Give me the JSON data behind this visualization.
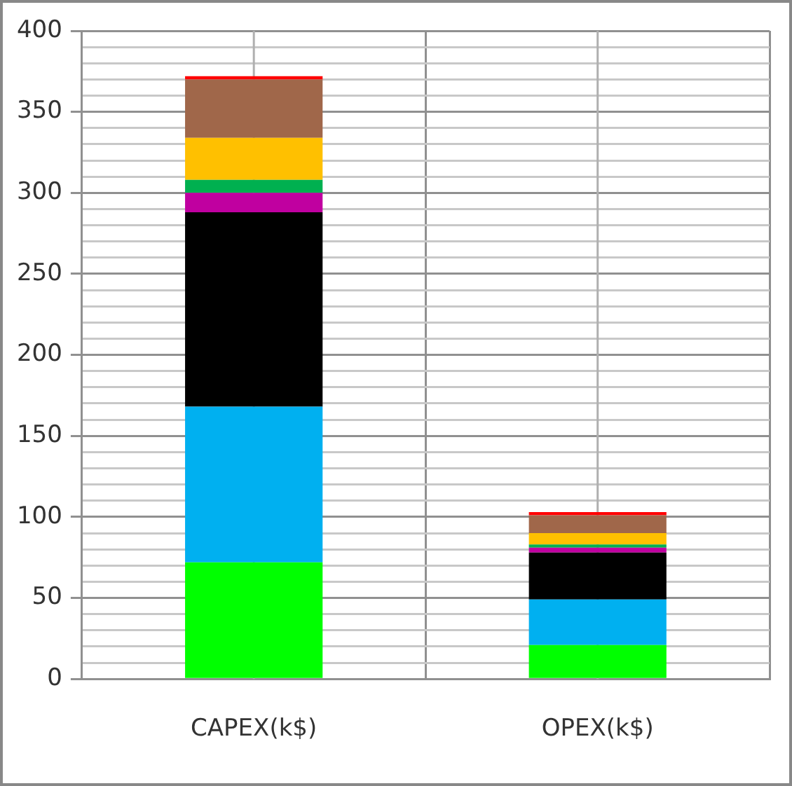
{
  "chart_data": {
    "type": "bar",
    "stacked": true,
    "categories": [
      "CAPEX(k$)",
      "OPEX(k$)"
    ],
    "series": [
      {
        "color": "#00ff00",
        "values": [
          72,
          21
        ]
      },
      {
        "color": "#00b0f0",
        "values": [
          96,
          28
        ]
      },
      {
        "color": "#000000",
        "values": [
          120,
          29
        ]
      },
      {
        "color": "#c000a0",
        "values": [
          12,
          3
        ]
      },
      {
        "color": "#00b050",
        "values": [
          8,
          2
        ]
      },
      {
        "color": "#ffc000",
        "values": [
          26,
          7
        ]
      },
      {
        "color": "#a0674a",
        "values": [
          36,
          11
        ]
      },
      {
        "color": "#ff0000",
        "values": [
          2,
          2
        ]
      }
    ],
    "ylim": [
      0,
      400
    ],
    "yticks": [
      0,
      {
        "value": 10,
        "label": null
      },
      {
        "value": 20,
        "label": null
      },
      {
        "value": 30,
        "label": null
      },
      {
        "value": 40,
        "label": null
      },
      50,
      {
        "value": 60,
        "label": null
      },
      {
        "value": 70,
        "label": null
      },
      {
        "value": 80,
        "label": null
      },
      {
        "value": 90,
        "label": null
      },
      100,
      {
        "value": 110,
        "label": null
      },
      {
        "value": 120,
        "label": null
      },
      {
        "value": 130,
        "label": null
      },
      {
        "value": 140,
        "label": null
      },
      150,
      {
        "value": 160,
        "label": null
      },
      {
        "value": 170,
        "label": null
      },
      {
        "value": 180,
        "label": null
      },
      {
        "value": 190,
        "label": null
      },
      200,
      {
        "value": 210,
        "label": null
      },
      {
        "value": 220,
        "label": null
      },
      {
        "value": 230,
        "label": null
      },
      {
        "value": 240,
        "label": null
      },
      250,
      {
        "value": 260,
        "label": null
      },
      {
        "value": 270,
        "label": null
      },
      {
        "value": 280,
        "label": null
      },
      {
        "value": 290,
        "label": null
      },
      300,
      {
        "value": 310,
        "label": null
      },
      {
        "value": 320,
        "label": null
      },
      {
        "value": 330,
        "label": null
      },
      {
        "value": 340,
        "label": null
      },
      350,
      {
        "value": 360,
        "label": null
      },
      {
        "value": 370,
        "label": null
      },
      {
        "value": 380,
        "label": null
      },
      {
        "value": 390,
        "label": null
      },
      400
    ],
    "grid": true
  }
}
